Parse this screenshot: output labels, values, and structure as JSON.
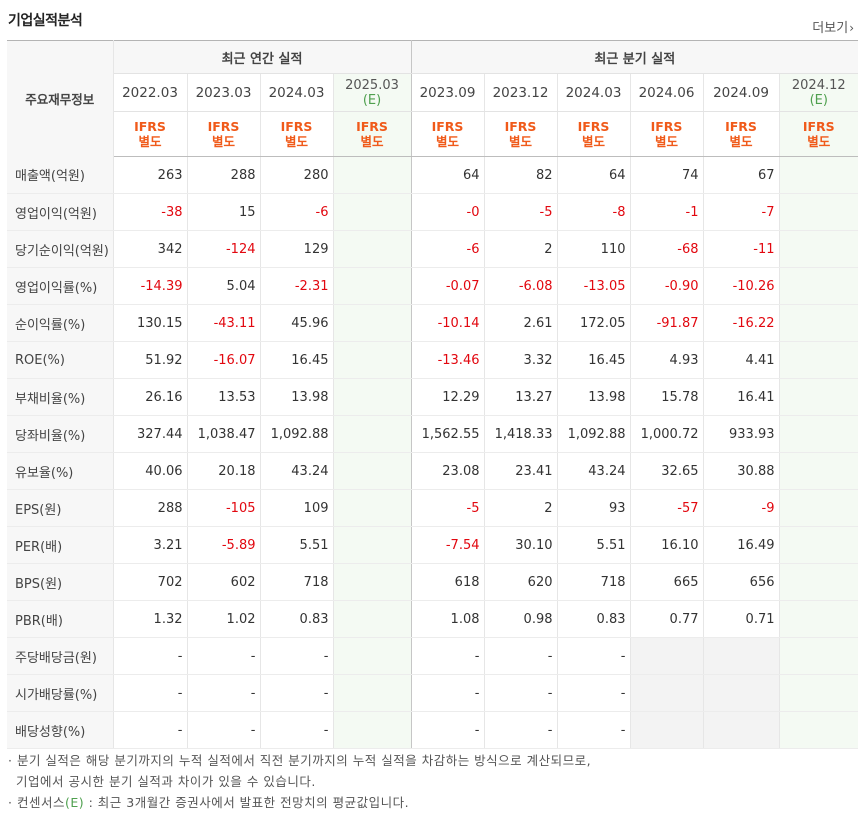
{
  "title": "기업실적분석",
  "more_label": "더보기",
  "header": {
    "row_label": "주요재무정보",
    "annual_group": "최근 연간 실적",
    "quarter_group": "최근 분기 실적",
    "annual_periods": [
      "2022.03",
      "2023.03",
      "2024.03",
      "2025.03"
    ],
    "quarter_periods": [
      "2023.09",
      "2023.12",
      "2024.03",
      "2024.06",
      "2024.09",
      "2024.12"
    ],
    "estimate_mark": "(E)",
    "ifrs_top": "IFRS",
    "ifrs_bottom": "별도"
  },
  "rows": [
    {
      "label": "매출액(억원)",
      "annual": [
        "263",
        "288",
        "280",
        ""
      ],
      "quarter": [
        "64",
        "82",
        "64",
        "74",
        "67",
        ""
      ]
    },
    {
      "label": "영업이익(억원)",
      "annual": [
        "-38",
        "15",
        "-6",
        ""
      ],
      "quarter": [
        "-0",
        "-5",
        "-8",
        "-1",
        "-7",
        ""
      ]
    },
    {
      "label": "당기순이익(억원)",
      "annual": [
        "342",
        "-124",
        "129",
        ""
      ],
      "quarter": [
        "-6",
        "2",
        "110",
        "-68",
        "-11",
        ""
      ]
    },
    {
      "label": "영업이익률(%)",
      "annual": [
        "-14.39",
        "5.04",
        "-2.31",
        ""
      ],
      "quarter": [
        "-0.07",
        "-6.08",
        "-13.05",
        "-0.90",
        "-10.26",
        ""
      ]
    },
    {
      "label": "순이익률(%)",
      "annual": [
        "130.15",
        "-43.11",
        "45.96",
        ""
      ],
      "quarter": [
        "-10.14",
        "2.61",
        "172.05",
        "-91.87",
        "-16.22",
        ""
      ]
    },
    {
      "label": "ROE(%)",
      "annual": [
        "51.92",
        "-16.07",
        "16.45",
        ""
      ],
      "quarter": [
        "-13.46",
        "3.32",
        "16.45",
        "4.93",
        "4.41",
        ""
      ]
    },
    {
      "label": "부채비율(%)",
      "annual": [
        "26.16",
        "13.53",
        "13.98",
        ""
      ],
      "quarter": [
        "12.29",
        "13.27",
        "13.98",
        "15.78",
        "16.41",
        ""
      ]
    },
    {
      "label": "당좌비율(%)",
      "annual": [
        "327.44",
        "1,038.47",
        "1,092.88",
        ""
      ],
      "quarter": [
        "1,562.55",
        "1,418.33",
        "1,092.88",
        "1,000.72",
        "933.93",
        ""
      ]
    },
    {
      "label": "유보율(%)",
      "annual": [
        "40.06",
        "20.18",
        "43.24",
        ""
      ],
      "quarter": [
        "23.08",
        "23.41",
        "43.24",
        "32.65",
        "30.88",
        ""
      ]
    },
    {
      "label": "EPS(원)",
      "annual": [
        "288",
        "-105",
        "109",
        ""
      ],
      "quarter": [
        "-5",
        "2",
        "93",
        "-57",
        "-9",
        ""
      ]
    },
    {
      "label": "PER(배)",
      "annual": [
        "3.21",
        "-5.89",
        "5.51",
        ""
      ],
      "quarter": [
        "-7.54",
        "30.10",
        "5.51",
        "16.10",
        "16.49",
        ""
      ]
    },
    {
      "label": "BPS(원)",
      "annual": [
        "702",
        "602",
        "718",
        ""
      ],
      "quarter": [
        "618",
        "620",
        "718",
        "665",
        "656",
        ""
      ]
    },
    {
      "label": "PBR(배)",
      "annual": [
        "1.32",
        "1.02",
        "0.83",
        ""
      ],
      "quarter": [
        "1.08",
        "0.98",
        "0.83",
        "0.77",
        "0.71",
        ""
      ]
    },
    {
      "label": "주당배당금(원)",
      "annual": [
        "-",
        "-",
        "-",
        ""
      ],
      "quarter": [
        "-",
        "-",
        "-",
        "",
        "",
        ""
      ]
    },
    {
      "label": "시가배당률(%)",
      "annual": [
        "-",
        "-",
        "-",
        ""
      ],
      "quarter": [
        "-",
        "-",
        "-",
        "",
        "",
        ""
      ]
    },
    {
      "label": "배당성향(%)",
      "annual": [
        "-",
        "-",
        "-",
        ""
      ],
      "quarter": [
        "-",
        "-",
        "-",
        "",
        "",
        ""
      ]
    }
  ],
  "notes": {
    "line1": "분기 실적은 해당 분기까지의 누적 실적에서 직전 분기까지의 누적 실적을 차감하는 방식으로 계산되므로,",
    "line2": "기업에서 공시한 분기 실적과 차이가 있을 수 있습니다.",
    "line3_prefix": "컨센서스",
    "line3_mark": "(E)",
    "line3_suffix": ": 최근 3개월간 증권사에서 발표한 전망치의 평균값입니다."
  },
  "colors": {
    "negative": "#e2070f",
    "ifrs": "#f05a1a",
    "estimate": "#4fa04f",
    "estimate_bg": "#f4faf3"
  }
}
